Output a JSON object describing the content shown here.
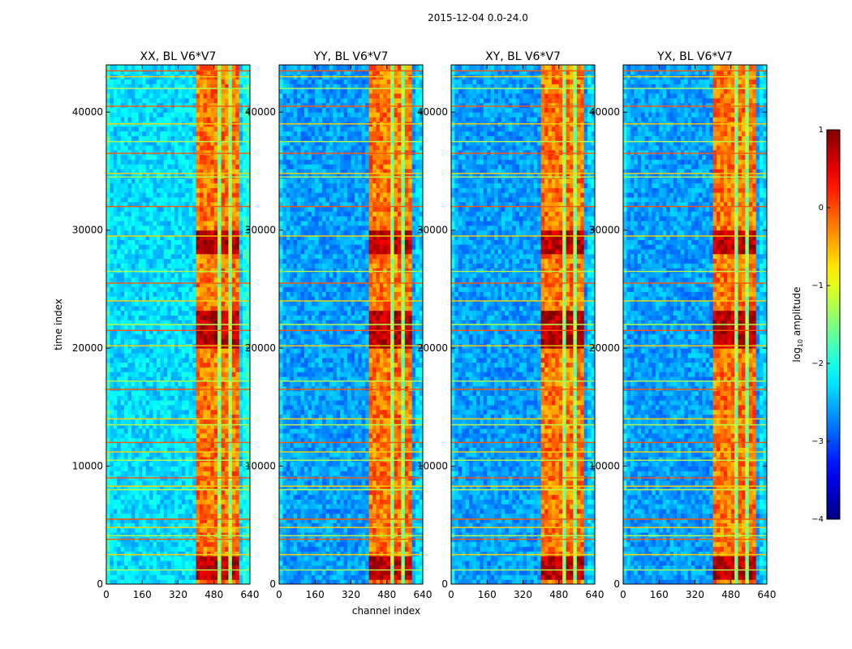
{
  "chart_data": {
    "type": "heatmap",
    "suptitle": "2015-12-04 0.0-24.0",
    "xlabel": "channel index",
    "ylabel": "time index",
    "xlim": [
      0,
      640
    ],
    "ylim": [
      0,
      44000
    ],
    "xticks": [
      0,
      160,
      320,
      480,
      640
    ],
    "yticks": [
      0,
      10000,
      20000,
      30000,
      40000
    ],
    "xtick_labels": [
      "0",
      "160",
      "320",
      "480",
      "640"
    ],
    "ytick_labels": [
      "0",
      "10000",
      "20000",
      "30000",
      "40000"
    ],
    "panels": [
      {
        "title": "XX, BL V6*V7"
      },
      {
        "title": "YY, BL V6*V7"
      },
      {
        "title": "XY, BL V6*V7"
      },
      {
        "title": "YX, BL V6*V7"
      }
    ],
    "colorbar": {
      "label": "log",
      "label_sub": "10",
      "label_suffix": " amplitude",
      "min": -4,
      "max": 1,
      "ticks": [
        1,
        0,
        -1,
        -2,
        -3,
        -4
      ],
      "tick_labels": [
        "1",
        "0",
        "−1",
        "−2",
        "−3",
        "−4"
      ],
      "colormap": "jet"
    },
    "signal_band_channels": [
      400,
      595
    ],
    "signal_block_channels": [
      [
        400,
        445
      ],
      [
        455,
        495
      ],
      [
        505,
        545
      ],
      [
        553,
        590
      ]
    ],
    "channel_gaps": [
      [
        445,
        455
      ],
      [
        495,
        505
      ],
      [
        545,
        553
      ]
    ],
    "strong_time_bands": [
      [
        500,
        2200
      ],
      [
        20000,
        23000
      ],
      [
        28000,
        30000
      ]
    ],
    "flagged_time_rows": [
      1200,
      2500,
      3800,
      4100,
      4800,
      5500,
      8000,
      8300,
      9000,
      10500,
      11200,
      12000,
      13500,
      14000,
      16500,
      17200,
      20200,
      21500,
      22000,
      24000,
      25500,
      26500,
      29500,
      32000,
      34500,
      34800,
      36500,
      37500,
      39000,
      40500,
      42000,
      43000,
      43500
    ]
  }
}
